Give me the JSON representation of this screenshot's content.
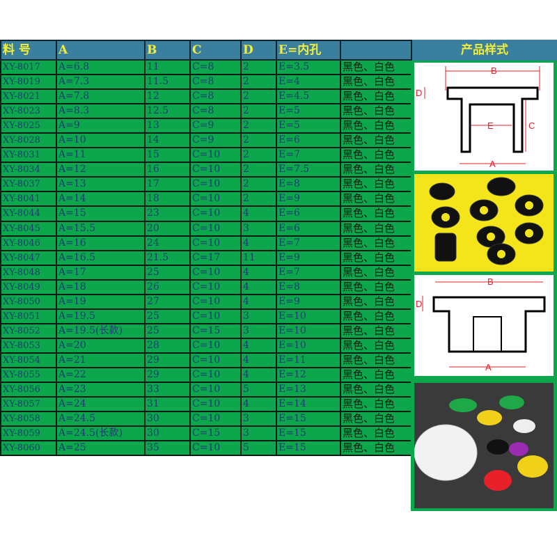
{
  "headers": {
    "id": "料 号",
    "a": "A",
    "b": "B",
    "c": "C",
    "d": "D",
    "e": "E=内孔",
    "color": "",
    "style": "产品样式"
  },
  "rows": [
    [
      "XY-8017",
      "A=6.8",
      "11",
      "C=8",
      "2",
      "E=3.5",
      "黑色、白色"
    ],
    [
      "XY-8019",
      "A=7.3",
      "11.5",
      "C=8",
      "2",
      "E=4",
      "黑色、白色"
    ],
    [
      "XY-8021",
      "A=7.8",
      "12",
      "C=8",
      "2",
      "E=4.5",
      "黑色、白色"
    ],
    [
      "XY-8023",
      "A=8.3",
      "12.5",
      "C=8",
      "2",
      "E=5",
      "黑色、白色"
    ],
    [
      "XY-8025",
      "A=9",
      "13",
      "C=9",
      "2",
      "E=5",
      "黑色、白色"
    ],
    [
      "XY-8028",
      "A=10",
      "14",
      "C=9",
      "2",
      "E=6",
      "黑色、白色"
    ],
    [
      "XY-8031",
      "A=11",
      "15",
      "C=10",
      "2",
      "E=7",
      "黑色、白色"
    ],
    [
      "XY-8034",
      "A=12",
      "16",
      "C=10",
      "2",
      "E=7.5",
      "黑色、白色"
    ],
    [
      "XY-8037",
      "A=13",
      "17",
      "C=10",
      "2",
      "E=8",
      "黑色、白色"
    ],
    [
      "XY-8041",
      "A=14",
      "18",
      "C=10",
      "2",
      "E=9",
      "黑色、白色"
    ],
    [
      "XY-8044",
      "A=15",
      "23",
      "C=10",
      "4",
      "E=6",
      "黑色、白色"
    ],
    [
      "XY-8045",
      "A=15.5",
      "20",
      "C=10",
      "3",
      "E=6",
      "黑色、白色"
    ],
    [
      "XY-8046",
      "A=16",
      "24",
      "C=10",
      "4",
      "E=7",
      "黑色、白色"
    ],
    [
      "XY-8047",
      "A=16.5",
      "21.5",
      "C=17",
      "11",
      "E=9",
      "黑色、白色"
    ],
    [
      "XY-8048",
      "A=17",
      "25",
      "C=10",
      "4",
      "E=7",
      "黑色、白色"
    ],
    [
      "XY-8049",
      "A=18",
      "26",
      "C=10",
      "4",
      "E=8",
      "黑色、白色"
    ],
    [
      "XY-8050",
      "A=19",
      "27",
      "C=10",
      "4",
      "E=9",
      "黑色、白色"
    ],
    [
      "XY-8051",
      "A=19.5",
      "25",
      "C=10",
      "3",
      "E=10",
      "黑色、白色"
    ],
    [
      "XY-8052",
      "A=19.5(长款)",
      "25",
      "C=15",
      "3",
      "E=10",
      "黑色、白色"
    ],
    [
      "XY-8053",
      "A=20",
      "28",
      "C=10",
      "4",
      "E=10",
      "黑色、白色"
    ],
    [
      "XY-8054",
      "A=21",
      "29",
      "C=10",
      "4",
      "E=11",
      "黑色、白色"
    ],
    [
      "XY-8055",
      "A=22",
      "29",
      "C=10",
      "4",
      "E=12",
      "黑色、白色"
    ],
    [
      "XY-8056",
      "A=23",
      "33",
      "C=10",
      "5",
      "E=13",
      "黑色、白色"
    ],
    [
      "XY-8057",
      "A=24",
      "31",
      "C=10",
      "4",
      "E=14",
      "黑色、白色"
    ],
    [
      "XY-8058",
      "A=24.5",
      "30",
      "C=10",
      "3",
      "E=15",
      "黑色、白色"
    ],
    [
      "XY-8059",
      "A=24.5(长款)",
      "30",
      "C=15",
      "3",
      "E=15",
      "黑色、白色"
    ],
    [
      "XY-8060",
      "A=25",
      "35",
      "C=10",
      "5",
      "E=15",
      "黑色、白色"
    ]
  ],
  "diagram_labels": {
    "a": "A",
    "b": "B",
    "c": "C",
    "d": "D",
    "e": "E"
  },
  "colors": {
    "header_bg": "#3b7f9e",
    "header_text": "#f2ee3a",
    "cell_bg": "#0ca74d",
    "cell_text": "#1b3c6e",
    "dimension_red": "#e0202a"
  }
}
